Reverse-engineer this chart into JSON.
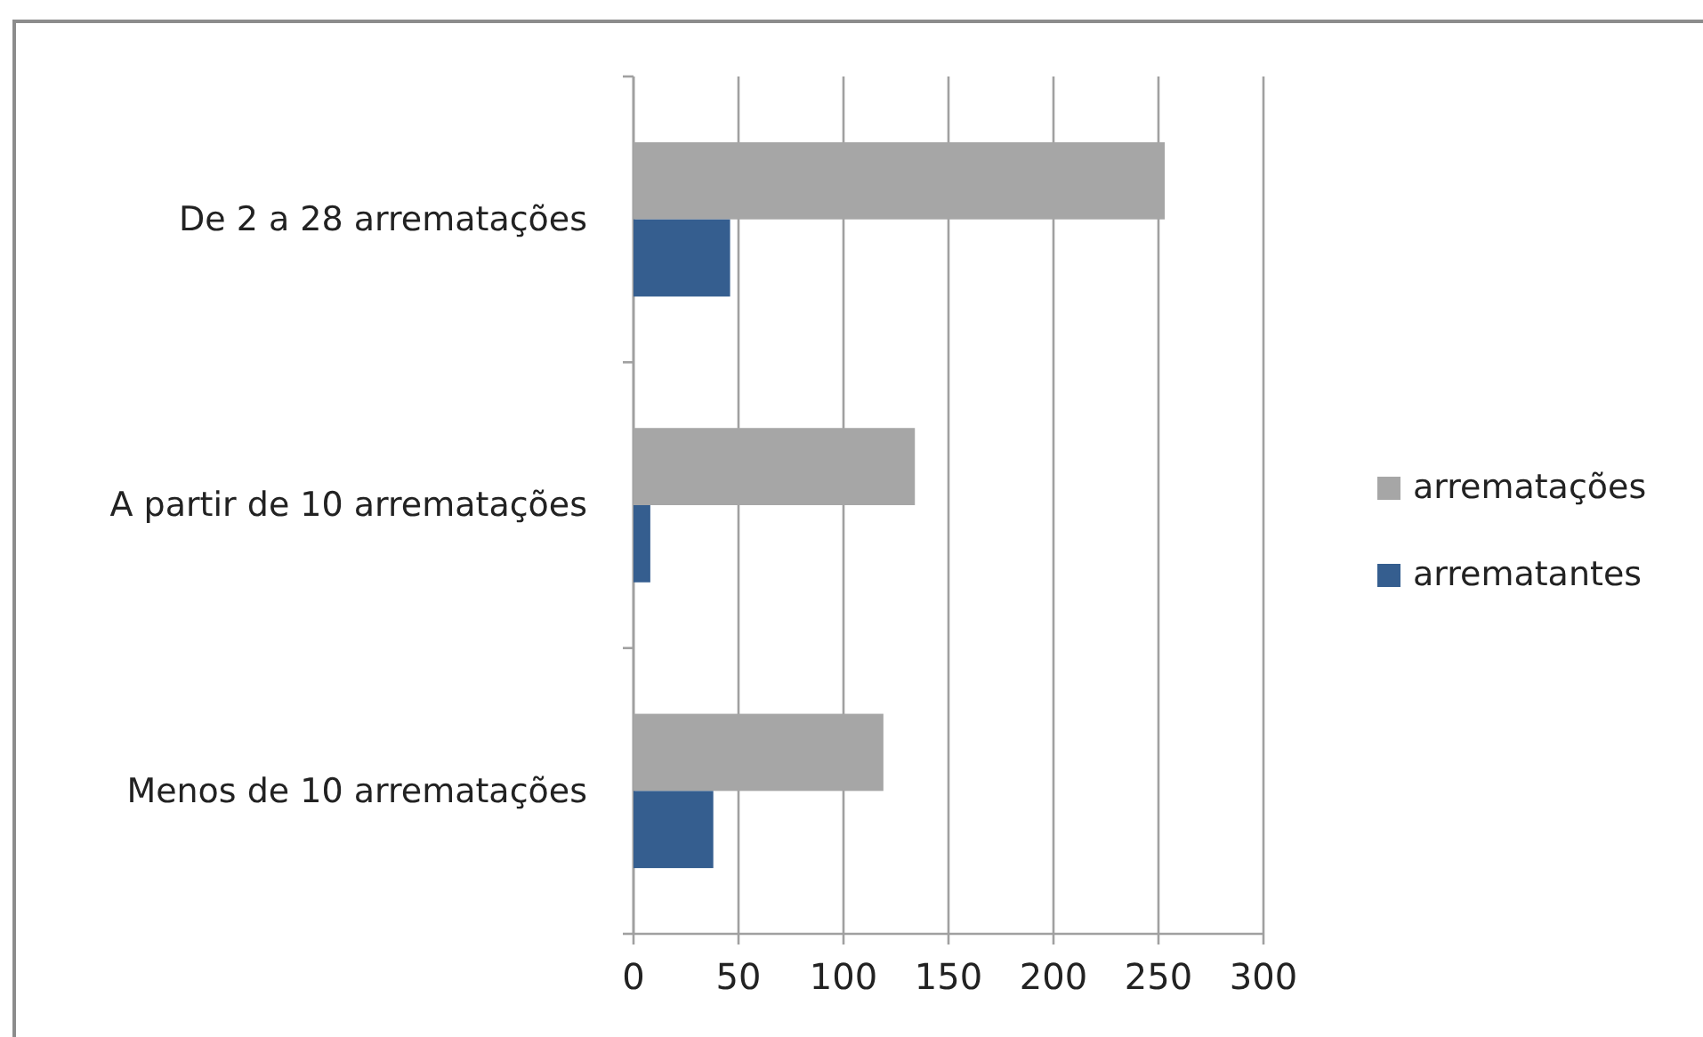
{
  "chart_data": {
    "type": "bar",
    "orientation": "horizontal",
    "categories": [
      "De 2 a 28 arrematações",
      "A partir de 10 arrematações",
      "Menos de 10 arrematações"
    ],
    "series": [
      {
        "name": "arrematações",
        "color": "#a6a6a6",
        "values": [
          253,
          134,
          119
        ]
      },
      {
        "name": "arrematantes",
        "color": "#355e8f",
        "values": [
          46,
          8,
          38
        ]
      }
    ],
    "xlim": [
      0,
      300
    ],
    "xticks": [
      0,
      50,
      100,
      150,
      200,
      250,
      300
    ],
    "grid": "x",
    "legend": "right"
  }
}
